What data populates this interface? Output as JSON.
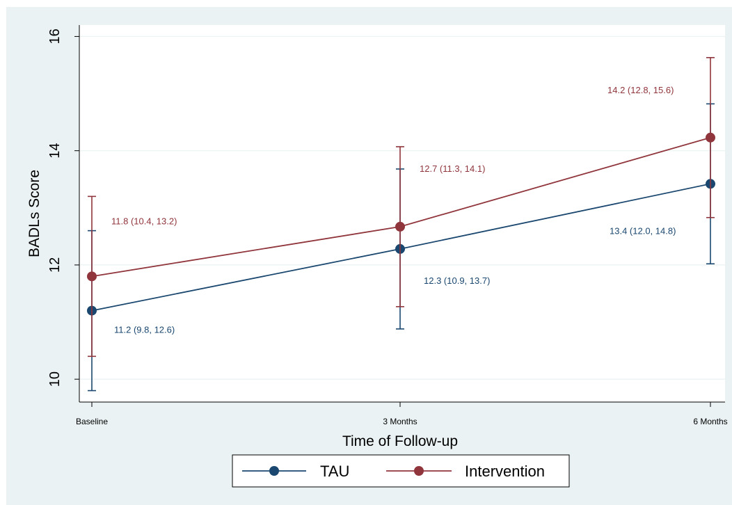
{
  "chart_data": {
    "type": "line",
    "xlabel": "Time of Follow-up",
    "ylabel": "BADLs Score",
    "categories": [
      "Baseline",
      "3 Months",
      "6 Months"
    ],
    "ylim": [
      9.6,
      16.2
    ],
    "yticks": [
      10,
      12,
      14,
      16
    ],
    "grid": true,
    "legend_position": "bottom",
    "series": [
      {
        "name": "TAU",
        "color": "#1a476f",
        "values": [
          11.2,
          12.28,
          13.42
        ],
        "ci_low": [
          9.8,
          10.88,
          12.02
        ],
        "ci_high": [
          12.6,
          13.68,
          14.82
        ],
        "labels": [
          "11.2 (9.8, 12.6)",
          "12.3 (10.9, 13.7)",
          "13.4 (12.0, 14.8)"
        ]
      },
      {
        "name": "Intervention",
        "color": "#90353b",
        "values": [
          11.8,
          12.67,
          14.23
        ],
        "ci_low": [
          10.4,
          11.27,
          12.83
        ],
        "ci_high": [
          13.2,
          14.07,
          15.63
        ],
        "labels": [
          "11.8 (10.4, 13.2)",
          "12.7 (11.3, 14.1)",
          "14.2 (12.8, 15.6)"
        ]
      }
    ]
  }
}
